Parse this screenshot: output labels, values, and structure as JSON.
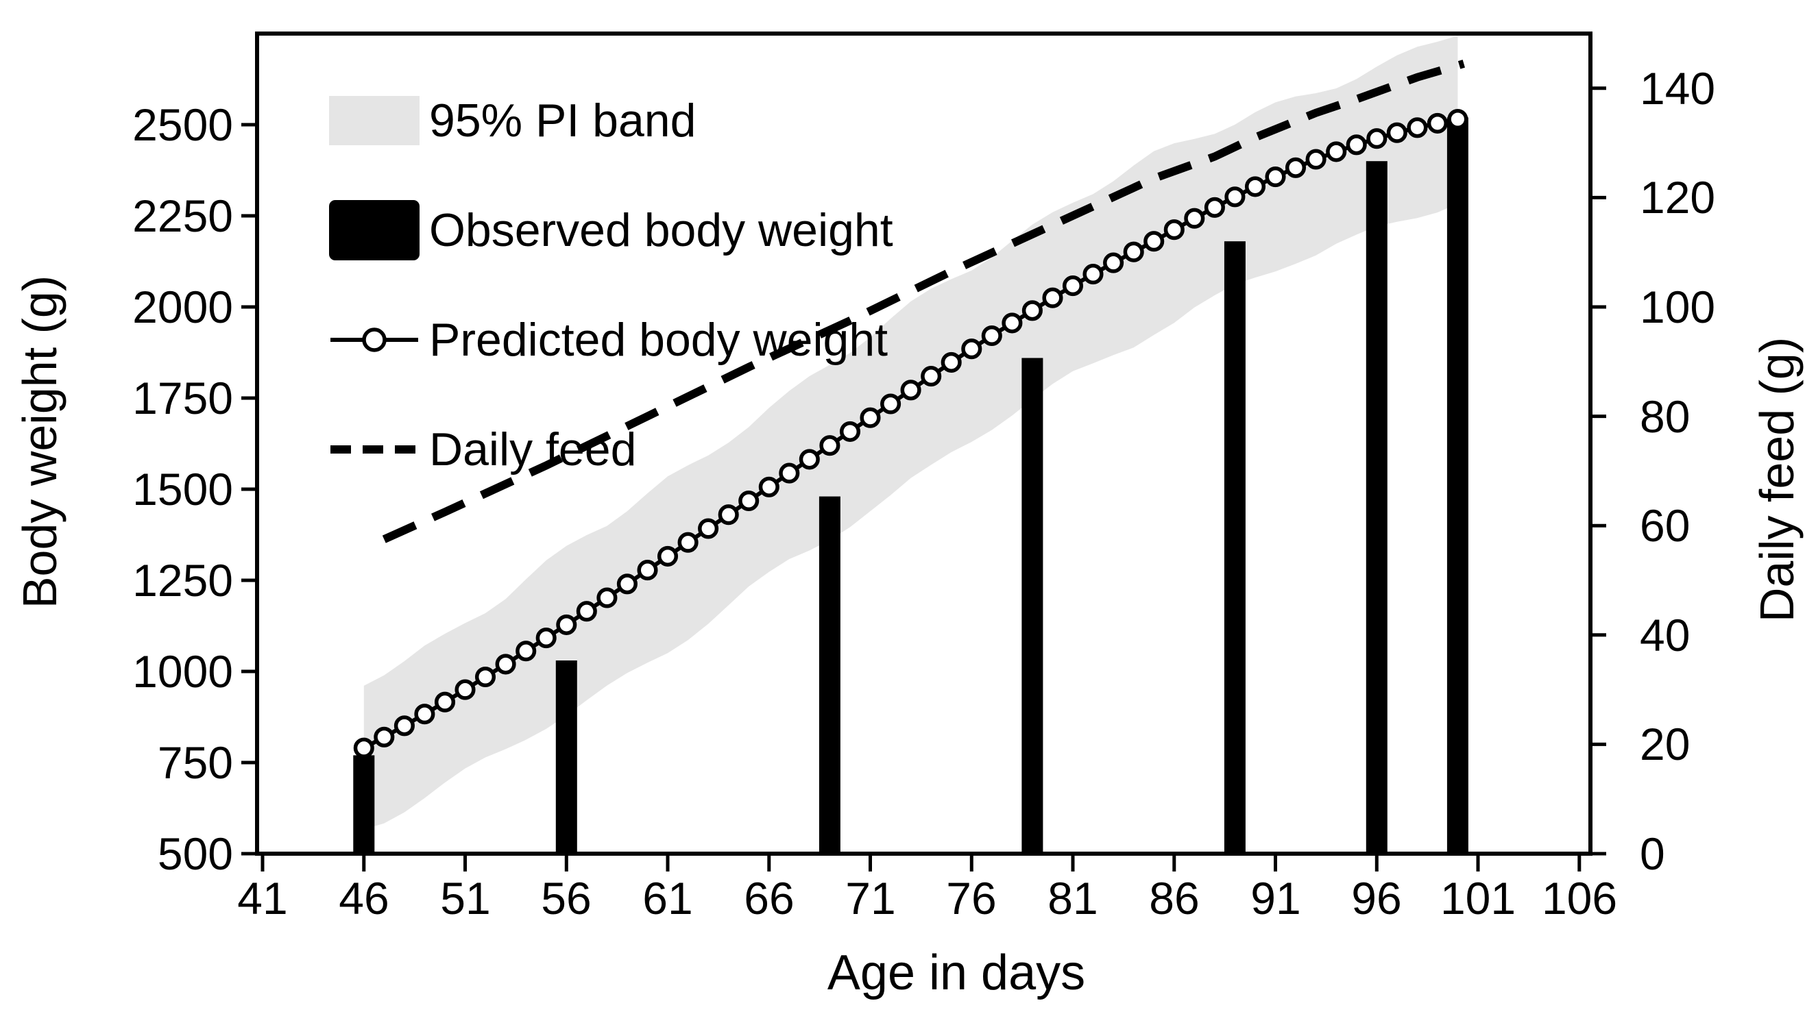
{
  "chart_data": {
    "type": "line",
    "title": "",
    "xlabel": "Age in days",
    "ylabel_left": "Body weight (g)",
    "ylabel_right": "Daily feed (g)",
    "x_ticks": [
      41,
      46,
      51,
      56,
      61,
      66,
      71,
      76,
      81,
      86,
      91,
      96,
      101,
      106
    ],
    "y_left_ticks": [
      500,
      750,
      1000,
      1250,
      1500,
      1750,
      2000,
      2250,
      2500
    ],
    "y_right_ticks": [
      0,
      20,
      40,
      60,
      80,
      100,
      120,
      140
    ],
    "x_range": [
      40.7,
      106.5
    ],
    "y_left_range": [
      500,
      2750
    ],
    "y_right_range": [
      0,
      150
    ],
    "grid": "off",
    "legend_position": "top-left-inside",
    "colors": {
      "band": "#e5e5e5",
      "ink": "#000000",
      "background": "#ffffff"
    },
    "series": [
      {
        "name": "95% PI band",
        "type": "band",
        "axis": "left",
        "days": [
          46,
          47,
          48,
          49,
          50,
          51,
          52,
          53,
          54,
          55,
          56,
          57,
          58,
          59,
          60,
          61,
          62,
          63,
          64,
          65,
          66,
          67,
          68,
          69,
          70,
          71,
          72,
          73,
          74,
          75,
          76,
          77,
          78,
          79,
          80,
          81,
          82,
          83,
          84,
          85,
          86,
          87,
          88,
          89,
          90,
          91,
          92,
          93,
          94,
          95,
          96,
          97,
          98,
          99,
          100
        ],
        "upper": [
          970,
          1000,
          1030,
          1065,
          1100,
          1140,
          1175,
          1210,
          1250,
          1290,
          1330,
          1370,
          1405,
          1445,
          1485,
          1525,
          1560,
          1600,
          1645,
          1685,
          1725,
          1760,
          1800,
          1840,
          1880,
          1920,
          1960,
          2000,
          2040,
          2080,
          2115,
          2150,
          2185,
          2220,
          2255,
          2290,
          2320,
          2350,
          2380,
          2410,
          2435,
          2460,
          2485,
          2510,
          2535,
          2555,
          2575,
          2595,
          2615,
          2635,
          2655,
          2675,
          2700,
          2725,
          2750
        ],
        "lower": [
          575,
          600,
          630,
          660,
          690,
          720,
          750,
          780,
          815,
          850,
          885,
          920,
          955,
          990,
          1025,
          1060,
          1100,
          1140,
          1180,
          1220,
          1255,
          1295,
          1330,
          1370,
          1410,
          1450,
          1485,
          1525,
          1560,
          1600,
          1635,
          1670,
          1705,
          1740,
          1775,
          1810,
          1840,
          1875,
          1905,
          1940,
          1965,
          1995,
          2020,
          2050,
          2075,
          2100,
          2125,
          2145,
          2170,
          2190,
          2215,
          2235,
          2255,
          2275,
          2295
        ]
      },
      {
        "name": "Observed body weight",
        "type": "bar",
        "axis": "left",
        "days": [
          46,
          56,
          69,
          79,
          89,
          96,
          100
        ],
        "values": [
          770,
          1030,
          1480,
          1860,
          2180,
          2400,
          2520
        ]
      },
      {
        "name": "Predicted body weight",
        "type": "line",
        "marker": "open-circle",
        "axis": "left",
        "days": [
          46,
          47,
          48,
          49,
          50,
          51,
          52,
          53,
          54,
          55,
          56,
          57,
          58,
          59,
          60,
          61,
          62,
          63,
          64,
          65,
          66,
          67,
          68,
          69,
          70,
          71,
          72,
          73,
          74,
          75,
          76,
          77,
          78,
          79,
          80,
          81,
          82,
          83,
          84,
          85,
          86,
          87,
          88,
          89,
          90,
          91,
          92,
          93,
          94,
          95,
          96,
          97,
          98,
          99,
          100
        ],
        "values": [
          790,
          820,
          851,
          883,
          916,
          950,
          985,
          1020,
          1056,
          1092,
          1128,
          1165,
          1202,
          1240,
          1278,
          1316,
          1354,
          1392,
          1430,
          1468,
          1506,
          1544,
          1582,
          1620,
          1658,
          1696,
          1734,
          1772,
          1810,
          1848,
          1885,
          1921,
          1956,
          1990,
          2025,
          2058,
          2090,
          2121,
          2151,
          2180,
          2212,
          2243,
          2273,
          2302,
          2330,
          2357,
          2382,
          2405,
          2426,
          2445,
          2462,
          2478,
          2492,
          2504,
          2515
        ]
      },
      {
        "name": "Daily feed",
        "type": "line",
        "style": "dashed",
        "axis": "right",
        "days": [
          47,
          50,
          55,
          60,
          65,
          70,
          75,
          80,
          85,
          88,
          90,
          93,
          95,
          98,
          100.3
        ],
        "values": [
          57.5,
          62.5,
          71,
          80,
          89,
          97.5,
          106.5,
          115,
          123.5,
          127.5,
          131,
          135.5,
          138,
          142,
          144.5
        ]
      }
    ]
  }
}
